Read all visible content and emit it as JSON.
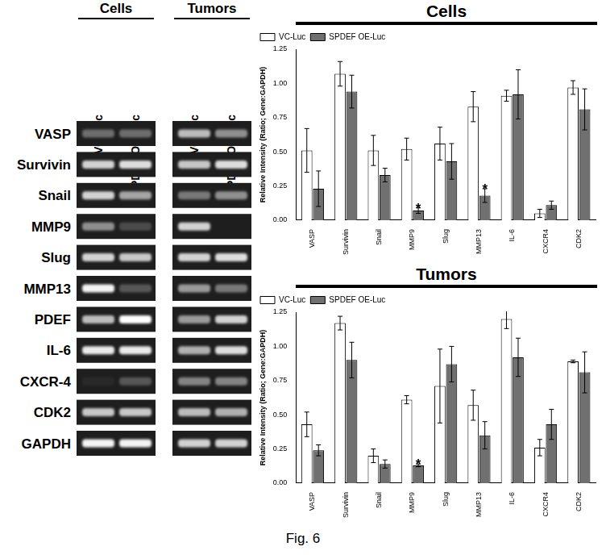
{
  "chart_data": [
    {
      "type": "bar",
      "title": "Cells",
      "y_label": "Relative Intensity (Ratio; Gene:GAPDH)",
      "categories": [
        "VASP",
        "Survivin",
        "Snail",
        "MMP9",
        "Slug",
        "MMP13",
        "IL-6",
        "CXCR4",
        "CDK2"
      ],
      "series": [
        {
          "name": "VC-Luc",
          "color": "#ffffff",
          "values": [
            0.51,
            1.07,
            0.51,
            0.52,
            0.56,
            0.83,
            0.91,
            0.05,
            0.97
          ],
          "errors": [
            0.16,
            0.09,
            0.11,
            0.08,
            0.12,
            0.11,
            0.04,
            0.03,
            0.05
          ]
        },
        {
          "name": "SPDEF OE-Luc",
          "color": "#707070",
          "values": [
            0.23,
            0.94,
            0.33,
            0.07,
            0.43,
            0.18,
            0.92,
            0.11,
            0.81
          ],
          "errors": [
            0.13,
            0.12,
            0.05,
            0.02,
            0.13,
            0.05,
            0.18,
            0.03,
            0.15
          ]
        }
      ],
      "annotations": [
        {
          "category": "MMP9",
          "series": "SPDEF OE-Luc",
          "text": "*"
        },
        {
          "category": "MMP13",
          "series": "SPDEF OE-Luc",
          "text": "*"
        }
      ],
      "ylim": [
        0,
        1.25
      ],
      "yticks": [
        {
          "value": 0,
          "label": "0.00"
        },
        {
          "value": 0.25,
          "label": "0.25"
        },
        {
          "value": 0.5,
          "label": "0.50"
        },
        {
          "value": 0.75,
          "label": "0.75"
        },
        {
          "value": 1,
          "label": "1.00"
        },
        {
          "value": 1.25,
          "label": "1.25"
        }
      ],
      "grid": false,
      "legend": "top-left"
    },
    {
      "type": "bar",
      "title": "Tumors",
      "y_label": "Relative Intensity (Ratio; Gene:GAPDH)",
      "categories": [
        "VASP",
        "Survivin",
        "Snail",
        "MMP9",
        "Slug",
        "MMP13",
        "IL-6",
        "CXCR4",
        "CDK2"
      ],
      "series": [
        {
          "name": "VC-Luc",
          "color": "#ffffff",
          "values": [
            0.43,
            1.17,
            0.2,
            0.61,
            0.71,
            0.57,
            1.2,
            0.26,
            0.89
          ],
          "errors": [
            0.09,
            0.05,
            0.05,
            0.03,
            0.27,
            0.11,
            0.07,
            0.06,
            0.01
          ]
        },
        {
          "name": "SPDEF OE-Luc",
          "color": "#707070",
          "values": [
            0.24,
            0.9,
            0.14,
            0.13,
            0.87,
            0.35,
            0.92,
            0.43,
            0.81
          ],
          "errors": [
            0.04,
            0.13,
            0.03,
            0.01,
            0.13,
            0.1,
            0.14,
            0.11,
            0.15
          ]
        }
      ],
      "annotations": [
        {
          "category": "MMP9",
          "series": "SPDEF OE-Luc",
          "text": "*"
        }
      ],
      "ylim": [
        0,
        1.25
      ],
      "yticks": [
        {
          "value": 0,
          "label": "0.00"
        },
        {
          "value": 0.25,
          "label": "0.25"
        },
        {
          "value": 0.5,
          "label": "0.50"
        },
        {
          "value": 0.75,
          "label": "0.75"
        },
        {
          "value": 1,
          "label": "1.00"
        },
        {
          "value": 1.25,
          "label": "1.25"
        }
      ],
      "grid": false,
      "legend": "top-left"
    }
  ],
  "gel": {
    "panels": [
      {
        "title": "Cells",
        "lanes": [
          "VC-Luc",
          "PDEF OE-Luc"
        ]
      },
      {
        "title": "Tumors",
        "lanes": [
          "VC-Luc",
          "PDEF OE-Luc"
        ]
      }
    ],
    "rows": [
      {
        "label": "VASP",
        "band_intensity": [
          [
            0.35,
            0.35
          ],
          [
            0.7,
            0.5
          ]
        ]
      },
      {
        "label": "Survivin",
        "band_intensity": [
          [
            0.8,
            0.85
          ],
          [
            0.75,
            0.85
          ]
        ]
      },
      {
        "label": "Snail",
        "band_intensity": [
          [
            0.8,
            0.6
          ],
          [
            0.4,
            0.5
          ]
        ]
      },
      {
        "label": "MMP9",
        "band_intensity": [
          [
            0.5,
            0.2
          ],
          [
            0.8,
            0
          ]
        ]
      },
      {
        "label": "Slug",
        "band_intensity": [
          [
            0.8,
            0.75
          ],
          [
            0.8,
            0.85
          ]
        ]
      },
      {
        "label": "MMP13",
        "band_intensity": [
          [
            0.95,
            0.25
          ],
          [
            0.55,
            0.4
          ]
        ]
      },
      {
        "label": "PDEF",
        "band_intensity": [
          [
            0.7,
            1
          ],
          [
            0.55,
            0.8
          ]
        ]
      },
      {
        "label": "IL-6",
        "band_intensity": [
          [
            0.9,
            0.9
          ],
          [
            0.65,
            0.85
          ]
        ]
      },
      {
        "label": "CXCR-4",
        "band_intensity": [
          [
            0.05,
            0.25
          ],
          [
            0.45,
            0.45
          ]
        ]
      },
      {
        "label": "CDK2",
        "band_intensity": [
          [
            0.75,
            0.75
          ],
          [
            0.7,
            0.65
          ]
        ]
      },
      {
        "label": "GAPDH",
        "band_intensity": [
          [
            0.95,
            0.95
          ],
          [
            0.8,
            0.8
          ]
        ]
      }
    ]
  },
  "figure_label": "Fig. 6"
}
